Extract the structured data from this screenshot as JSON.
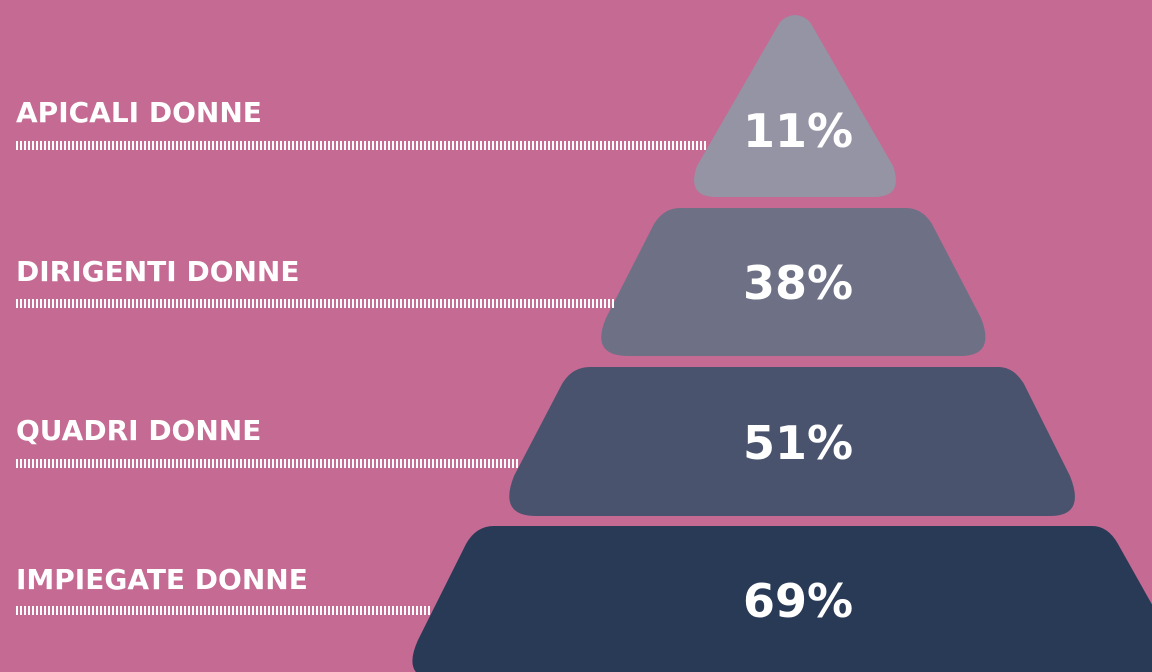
{
  "pyramid": {
    "levels": [
      {
        "label": "APICALI DONNE",
        "value": "11%",
        "color": "#9594a5"
      },
      {
        "label": "DIRIGENTI DONNE",
        "value": "38%",
        "color": "#6e7086"
      },
      {
        "label": "QUADRI DONNE",
        "value": "51%",
        "color": "#49536e"
      },
      {
        "label": "IMPIEGATE DONNE",
        "value": "69%",
        "color": "#283a56"
      }
    ],
    "background": "#c46a93"
  }
}
